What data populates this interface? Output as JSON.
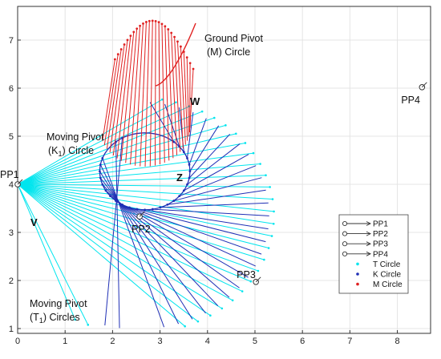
{
  "chart_data": {
    "type": "line",
    "title": "",
    "xlabel": "",
    "ylabel": "",
    "xlim": [
      0,
      8.7
    ],
    "ylim": [
      0.9,
      7.7
    ],
    "x_ticks": [
      "0",
      "1",
      "2",
      "3",
      "4",
      "5",
      "6",
      "7",
      "8"
    ],
    "y_ticks": [
      "1",
      "2",
      "3",
      "4",
      "5",
      "6",
      "7"
    ],
    "grid": true,
    "legend_position": "lower-right",
    "precision_points": [
      {
        "label": "PP1",
        "x": 0.0,
        "y": 4.0
      },
      {
        "label": "PP2",
        "x": 2.57,
        "y": 3.33
      },
      {
        "label": "PP3",
        "x": 5.02,
        "y": 1.97
      },
      {
        "label": "PP4",
        "x": 8.52,
        "y": 6.02
      }
    ],
    "legend": [
      {
        "label": "PP1",
        "kind": "precision-point"
      },
      {
        "label": "PP2",
        "kind": "precision-point"
      },
      {
        "label": "PP3",
        "kind": "precision-point"
      },
      {
        "label": "PP4",
        "kind": "precision-point"
      },
      {
        "label": "T Circle",
        "kind": "dot",
        "color": "#00e5ee"
      },
      {
        "label": "K Circle",
        "kind": "dot",
        "color": "#1f2fb5"
      },
      {
        "label": "M Circle",
        "kind": "dot",
        "color": "#e02020"
      }
    ],
    "series": [
      {
        "label": "T Circle",
        "color": "#00e5ee"
      },
      {
        "label": "K Circle",
        "color": "#1f2fb5"
      },
      {
        "label": "M Circle",
        "color": "#e02020"
      }
    ],
    "annotations": {
      "ground_pivot_line1": "Ground Pivot",
      "ground_pivot_line2": "(M) Circle",
      "moving_pivot_k_line1": "Moving Pivot",
      "moving_pivot_k_line2_pre": "(K",
      "moving_pivot_k_sub": "1",
      "moving_pivot_k_line2_post": ") Circle",
      "moving_pivot_t_line1": "Moving Pivot",
      "moving_pivot_t_line2_pre": "(T",
      "moving_pivot_t_sub": "1",
      "moving_pivot_t_line2_post": ") Circles",
      "w_label": "W",
      "z_label": "Z",
      "v_label": "V"
    },
    "colors": {
      "t_circle": "#00e5ee",
      "k_circle": "#1f2fb5",
      "m_circle": "#e02020",
      "grid": "#e4e4e4",
      "axis": "#333333"
    }
  }
}
